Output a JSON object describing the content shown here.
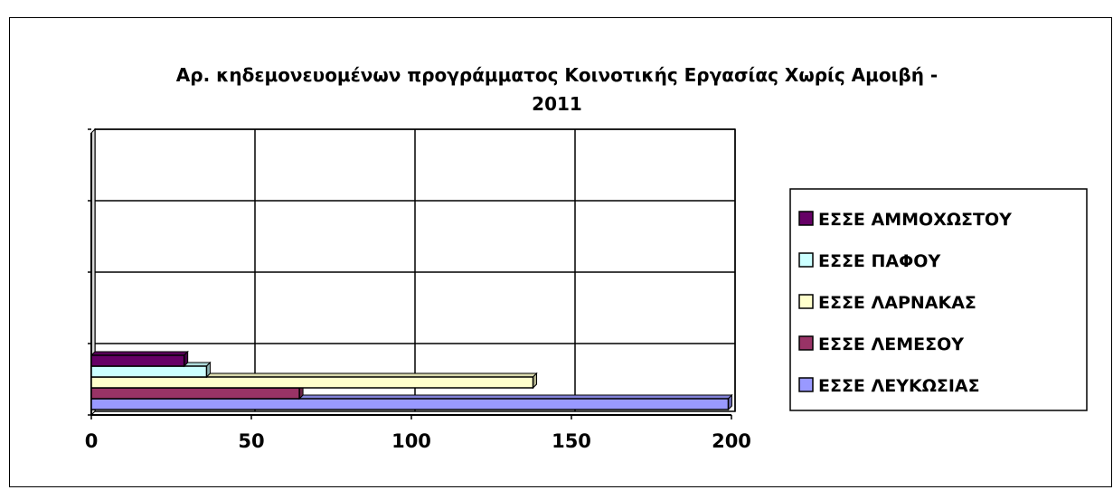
{
  "chart_data": {
    "type": "bar",
    "orientation": "horizontal",
    "style": "3d",
    "title": "Αρ. κηδεμονευομένων προγράμματος Κοινοτικής Εργασίας Χωρίς Αμοιβή - 2011",
    "title_lines": [
      "Αρ. κηδεμονευομένων προγράμματος Κοινοτικής Εργασίας Χωρίς Αμοιβή -",
      "2011"
    ],
    "xlim": [
      0,
      200
    ],
    "x_ticks": [
      0,
      50,
      100,
      150,
      200
    ],
    "x_tick_labels": [
      "0",
      "50",
      "100",
      "150",
      "200"
    ],
    "grid": true,
    "legend_position": "right",
    "series": [
      {
        "name": "ΕΣΣΕ ΛΕΥΚΩΣΙΑΣ",
        "values": [
          199
        ],
        "color": "#9999ff"
      },
      {
        "name": "ΕΣΣΕ ΛΕΜΕΣΟΥ",
        "values": [
          65
        ],
        "color": "#993366"
      },
      {
        "name": "ΕΣΣΕ ΛΑΡΝΑΚΑΣ",
        "values": [
          138
        ],
        "color": "#ffffcc"
      },
      {
        "name": "ΕΣΣΕ ΠΑΦΟΥ",
        "values": [
          36
        ],
        "color": "#ccffff"
      },
      {
        "name": "ΕΣΣΕ ΑΜΜΟΧΩΣΤΟΥ",
        "values": [
          29
        ],
        "color": "#660066"
      }
    ],
    "legend_order": [
      "ΕΣΣΕ ΑΜΜΟΧΩΣΤΟΥ",
      "ΕΣΣΕ ΠΑΦΟΥ",
      "ΕΣΣΕ ΛΑΡΝΑΚΑΣ",
      "ΕΣΣΕ ΛΕΜΕΣΟΥ",
      "ΕΣΣΕ ΛΕΥΚΩΣΙΑΣ"
    ]
  }
}
